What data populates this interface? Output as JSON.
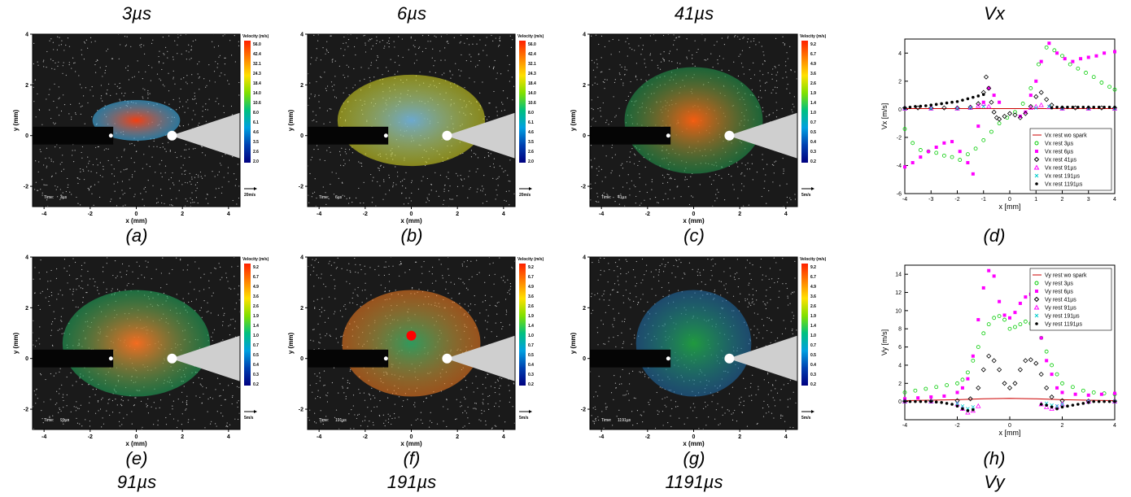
{
  "captions": {
    "top": [
      "3µs",
      "6µs",
      "41µs",
      "Vx"
    ],
    "bottom": [
      "91µs",
      "191µs",
      "1191µs",
      "Vy"
    ],
    "letters": [
      "(a)",
      "(b)",
      "(c)",
      "(d)",
      "(e)",
      "(f)",
      "(g)",
      "(h)"
    ]
  },
  "piv_panels": [
    {
      "id": "a",
      "time_label": "Time:",
      "time_value": "3µs",
      "scale_label": "20m/s",
      "colorbar_title": "Velocity (m/s)",
      "colorbar_ticks": [
        "56.0",
        "42.4",
        "32.1",
        "24.3",
        "18.4",
        "14.0",
        "10.6",
        "8.0",
        "6.1",
        "4.6",
        "3.5",
        "2.6",
        "2.0"
      ]
    },
    {
      "id": "b",
      "time_label": "Time:",
      "time_value": "6µs",
      "scale_label": "20m/s",
      "colorbar_title": "Velocity (m/s)",
      "colorbar_ticks": [
        "56.0",
        "42.4",
        "32.1",
        "24.3",
        "18.4",
        "14.0",
        "10.6",
        "8.0",
        "6.1",
        "4.6",
        "3.5",
        "2.6",
        "2.0"
      ]
    },
    {
      "id": "c",
      "time_label": "Time:",
      "time_value": "41µs",
      "scale_label": "5m/s",
      "colorbar_title": "Velocity (m/s)",
      "colorbar_ticks": [
        "9.2",
        "6.7",
        "4.9",
        "3.6",
        "2.6",
        "1.9",
        "1.4",
        "1.0",
        "0.7",
        "0.5",
        "0.4",
        "0.3",
        "0.2"
      ]
    },
    {
      "id": "e",
      "time_label": "Time:",
      "time_value": "91µs",
      "scale_label": "5m/s",
      "colorbar_title": "Velocity (m/s)",
      "colorbar_ticks": [
        "9.2",
        "6.7",
        "4.9",
        "3.6",
        "2.6",
        "1.9",
        "1.4",
        "1.0",
        "0.7",
        "0.5",
        "0.4",
        "0.3",
        "0.2"
      ]
    },
    {
      "id": "f",
      "time_label": "Time:",
      "time_value": "191µs",
      "scale_label": "5m/s",
      "colorbar_title": "Velocity (m/s)",
      "colorbar_ticks": [
        "9.2",
        "6.7",
        "4.9",
        "3.6",
        "2.6",
        "1.9",
        "1.4",
        "1.0",
        "0.7",
        "0.5",
        "0.4",
        "0.3",
        "0.2"
      ]
    },
    {
      "id": "g",
      "time_label": "Time:",
      "time_value": "1191µs",
      "scale_label": "5m/s",
      "colorbar_title": "Velocity (m/s)",
      "colorbar_ticks": [
        "9.2",
        "6.7",
        "4.9",
        "3.6",
        "2.6",
        "1.9",
        "1.4",
        "1.0",
        "0.7",
        "0.5",
        "0.4",
        "0.3",
        "0.2"
      ]
    }
  ],
  "piv_axes": {
    "xlabel": "x (mm)",
    "ylabel": "y (mm)",
    "xticks": [
      "-4",
      "-2",
      "0",
      "2",
      "4"
    ],
    "yticks": [
      "4",
      "2",
      "0",
      "-2"
    ]
  },
  "colors": {
    "magenta": "#ff00ff",
    "green": "#00cc00",
    "black": "#000000",
    "cyan": "#00cccc",
    "red": "#cc0000"
  },
  "chart_data": [
    {
      "type": "scatter",
      "panel": "d",
      "xlabel": "x [mm]",
      "ylabel": "Vx [m/s]",
      "xlim": [
        -4,
        4
      ],
      "ylim": [
        -6,
        5
      ],
      "xticks": [
        -4,
        -3,
        -2,
        -1,
        0,
        1,
        2,
        3,
        4
      ],
      "yticks": [
        -6,
        -4,
        -2,
        0,
        2,
        4
      ],
      "legend_position": "bottom-right",
      "series": [
        {
          "name": "Vx rest wo spark",
          "marker": "line",
          "color": "#cc0000",
          "x": [
            -4,
            -3,
            -2,
            -1,
            0,
            1,
            2,
            3,
            4
          ],
          "y": [
            0.05,
            0.05,
            0.05,
            0.05,
            0.05,
            0.05,
            0.05,
            0.05,
            0.05
          ]
        },
        {
          "name": "Vx rest 3µs",
          "marker": "circle",
          "color": "#00cc00",
          "x": [
            -4,
            -3.7,
            -3.4,
            -3.1,
            -2.8,
            -2.5,
            -2.2,
            -1.9,
            -1.6,
            -1.3,
            -1.0,
            -0.7,
            -0.4,
            -0.1,
            0.2,
            0.5,
            0.8,
            1.1,
            1.4,
            1.7,
            2.0,
            2.3,
            2.6,
            2.9,
            3.2,
            3.5,
            3.8,
            4.0
          ],
          "y": [
            -1.4,
            -2.4,
            -2.9,
            -3.0,
            -3.1,
            -3.3,
            -3.4,
            -3.6,
            -3.2,
            -2.8,
            -2.2,
            -1.6,
            -1.0,
            -0.6,
            -0.2,
            0.4,
            1.5,
            3.2,
            4.4,
            4.2,
            3.8,
            3.2,
            2.9,
            2.6,
            2.3,
            1.9,
            1.6,
            1.4
          ]
        },
        {
          "name": "Vx rest 6µs",
          "marker": "square",
          "color": "#ff00ff",
          "x": [
            -4,
            -3.7,
            -3.4,
            -3.1,
            -2.8,
            -2.5,
            -2.2,
            -1.9,
            -1.6,
            -1.4,
            -1.2,
            -1.0,
            -0.8,
            -0.6,
            -0.4,
            0.4,
            0.6,
            0.8,
            1.0,
            1.2,
            1.5,
            1.8,
            2.1,
            2.4,
            2.7,
            3.0,
            3.3,
            3.6,
            4.0
          ],
          "y": [
            -4.1,
            -3.8,
            -3.4,
            -3.0,
            -2.7,
            -2.4,
            -2.3,
            -3.0,
            -3.8,
            -4.6,
            -1.2,
            0.5,
            1.5,
            1.0,
            0.5,
            -0.5,
            -0.2,
            1.0,
            2.0,
            3.4,
            4.7,
            4.0,
            3.6,
            3.4,
            3.6,
            3.7,
            3.8,
            4.0,
            4.1
          ]
        },
        {
          "name": "Vx rest 41µs",
          "marker": "diamond",
          "color": "#000000",
          "x": [
            -4,
            -3.5,
            -3.0,
            -2.5,
            -2.0,
            -1.5,
            -1.2,
            -1.0,
            -0.9,
            -0.8,
            -0.7,
            -0.6,
            -0.5,
            -0.4,
            -0.2,
            0,
            0.2,
            0.4,
            0.6,
            0.8,
            1.0,
            1.2,
            1.4,
            1.6,
            2.0,
            2.5,
            3.0,
            3.5,
            4.0
          ],
          "y": [
            0.1,
            0.1,
            0.1,
            0.1,
            0.1,
            0.15,
            0.4,
            1.2,
            2.3,
            1.5,
            0.5,
            -0.2,
            -0.6,
            -0.7,
            -0.5,
            -0.3,
            -0.4,
            -0.6,
            -0.3,
            0.2,
            0.9,
            1.2,
            0.7,
            0.3,
            0.1,
            0.1,
            0.1,
            0.1,
            0.1
          ]
        },
        {
          "name": "Vx rest 91µs",
          "marker": "triangle",
          "color": "#ff00ff",
          "x": [
            -4,
            -3,
            -2,
            -1.5,
            -1.2,
            -1.0,
            -0.8,
            0.8,
            1.0,
            1.2,
            1.5,
            2,
            3,
            4
          ],
          "y": [
            0.05,
            0.05,
            0.05,
            0.1,
            0.25,
            0.4,
            0.2,
            0.1,
            0.2,
            0.3,
            0.15,
            0.05,
            0.05,
            0.05
          ]
        },
        {
          "name": "Vx rest 191µs",
          "marker": "x",
          "color": "#00cccc",
          "x": [
            -4,
            -3,
            -2,
            -1.5,
            -1.0,
            1.0,
            1.5,
            2,
            3,
            4
          ],
          "y": [
            0.05,
            0.05,
            0.05,
            0.1,
            0.2,
            0.1,
            0.2,
            0.05,
            0.05,
            0.05
          ]
        },
        {
          "name": "Vx rest 1191µs",
          "marker": "dot",
          "color": "#000000",
          "x": [
            -4,
            -3.8,
            -3.6,
            -3.4,
            -3.2,
            -3.0,
            -2.8,
            -2.6,
            -2.4,
            -2.2,
            -2.0,
            -1.8,
            -1.6,
            -1.4,
            -1.2,
            -1.0,
            1.6,
            1.8,
            2.0,
            2.2,
            2.4,
            2.6,
            2.8,
            3.0,
            3.2,
            3.4,
            3.6,
            3.8,
            4.0
          ],
          "y": [
            0.1,
            0.15,
            0.2,
            0.22,
            0.25,
            0.3,
            0.35,
            0.4,
            0.45,
            0.5,
            0.55,
            0.65,
            0.75,
            0.85,
            0.95,
            1.05,
            0.1,
            0.15,
            0.15,
            0.15,
            0.15,
            0.15,
            0.15,
            0.15,
            0.15,
            0.15,
            0.15,
            0.15,
            0.15
          ]
        }
      ]
    },
    {
      "type": "scatter",
      "panel": "h",
      "xlabel": "x [mm]",
      "ylabel": "Vy [m/s]",
      "xlim": [
        -4,
        4
      ],
      "ylim": [
        -2,
        15
      ],
      "xticks": [
        -4,
        -2,
        0,
        2,
        4
      ],
      "yticks": [
        0,
        2,
        4,
        6,
        8,
        10,
        12,
        14
      ],
      "legend_position": "top-right",
      "series": [
        {
          "name": "Vy rest wo spark",
          "marker": "line",
          "color": "#cc0000",
          "x": [
            -4,
            -3,
            -2,
            -1,
            0,
            1,
            2,
            3,
            4
          ],
          "y": [
            0.1,
            0.15,
            0.2,
            0.3,
            0.35,
            0.3,
            0.2,
            0.15,
            0.1
          ]
        },
        {
          "name": "Vy rest 3µs",
          "marker": "circle",
          "color": "#00cc00",
          "x": [
            -4,
            -3.6,
            -3.2,
            -2.8,
            -2.4,
            -2.0,
            -1.8,
            -1.6,
            -1.4,
            -1.2,
            -1.0,
            -0.8,
            -0.6,
            -0.4,
            -0.2,
            0,
            0.2,
            0.4,
            0.6,
            0.8,
            1.0,
            1.2,
            1.4,
            1.6,
            1.8,
            2.0,
            2.4,
            2.8,
            3.2,
            3.6,
            4.0
          ],
          "y": [
            1.0,
            1.2,
            1.4,
            1.6,
            1.8,
            2.0,
            2.4,
            3.2,
            4.5,
            6.0,
            7.5,
            8.5,
            9.2,
            9.4,
            9.0,
            8.0,
            8.2,
            8.5,
            8.8,
            8.6,
            8.2,
            7.0,
            5.5,
            4.0,
            3.0,
            2.0,
            1.6,
            1.2,
            1.0,
            0.9,
            0.8
          ]
        },
        {
          "name": "Vy rest 6µs",
          "marker": "square",
          "color": "#ff00ff",
          "x": [
            -4,
            -3.5,
            -3.0,
            -2.5,
            -2.0,
            -1.8,
            -1.6,
            -1.4,
            -1.2,
            -1.0,
            -0.8,
            -0.6,
            -0.4,
            -0.2,
            0,
            0.2,
            0.4,
            0.6,
            0.8,
            1.0,
            1.2,
            1.4,
            1.6,
            1.8,
            2.0,
            2.5,
            3.0,
            3.5,
            4.0
          ],
          "y": [
            0.3,
            0.4,
            0.5,
            0.6,
            1.0,
            1.5,
            2.5,
            5.0,
            9.0,
            12.5,
            14.4,
            13.8,
            11.0,
            9.5,
            9.2,
            9.8,
            10.8,
            11.5,
            11.8,
            10.5,
            7.0,
            4.5,
            3.0,
            1.5,
            1.0,
            0.8,
            0.7,
            0.8,
            0.9
          ]
        },
        {
          "name": "Vy rest 41µs",
          "marker": "diamond",
          "color": "#000000",
          "x": [
            -4,
            -3,
            -2,
            -1.5,
            -1.2,
            -1.0,
            -0.8,
            -0.6,
            -0.4,
            -0.2,
            0,
            0.2,
            0.4,
            0.6,
            0.8,
            1.0,
            1.2,
            1.4,
            1.6,
            2,
            3,
            4
          ],
          "y": [
            0.05,
            0.05,
            0.1,
            0.3,
            1.5,
            3.5,
            5.0,
            4.5,
            3.5,
            2.0,
            1.5,
            2.0,
            3.5,
            4.5,
            4.6,
            4.2,
            3.0,
            1.5,
            0.5,
            0.1,
            0.05,
            0.05
          ]
        },
        {
          "name": "Vy rest 91µs",
          "marker": "triangle",
          "color": "#ff00ff",
          "x": [
            -4,
            -3,
            -2,
            -1.8,
            -1.6,
            -1.4,
            -1.2,
            1.2,
            1.4,
            1.6,
            1.8,
            2,
            3,
            4
          ],
          "y": [
            0.0,
            0.0,
            -0.3,
            -0.8,
            -1.2,
            -1.0,
            -0.5,
            -0.3,
            -0.6,
            -0.8,
            -0.6,
            -0.3,
            0.0,
            0.0
          ]
        },
        {
          "name": "Vy rest 191µs",
          "marker": "x",
          "color": "#00cccc",
          "x": [
            -4,
            -3,
            -2,
            -1.8,
            -1.6,
            -1.4,
            1.4,
            1.6,
            1.8,
            2,
            3,
            4
          ],
          "y": [
            0.0,
            0.0,
            -0.2,
            -0.5,
            -0.8,
            -0.6,
            -0.2,
            -0.4,
            -0.5,
            -0.3,
            0.0,
            0.0
          ]
        },
        {
          "name": "Vy rest 1191µs",
          "marker": "dot",
          "color": "#000000",
          "x": [
            -4,
            -3.8,
            -3.6,
            -3.4,
            -3.2,
            -3.0,
            -2.8,
            -2.6,
            -2.4,
            -2.2,
            -2.0,
            -1.8,
            -1.6,
            -1.4,
            1.2,
            1.4,
            1.6,
            1.8,
            2.0,
            2.2,
            2.4,
            2.6,
            2.8,
            3.0,
            3.2,
            3.4,
            3.6,
            3.8,
            4.0
          ],
          "y": [
            0.0,
            0.0,
            0.0,
            0.0,
            0.0,
            0.0,
            -0.05,
            -0.1,
            -0.2,
            -0.3,
            -0.5,
            -0.8,
            -1.0,
            -0.9,
            -0.3,
            -0.4,
            -0.6,
            -0.8,
            -0.6,
            -0.5,
            -0.4,
            -0.3,
            -0.2,
            -0.1,
            0.0,
            0.0,
            0.0,
            0.0,
            0.0
          ]
        }
      ]
    }
  ]
}
